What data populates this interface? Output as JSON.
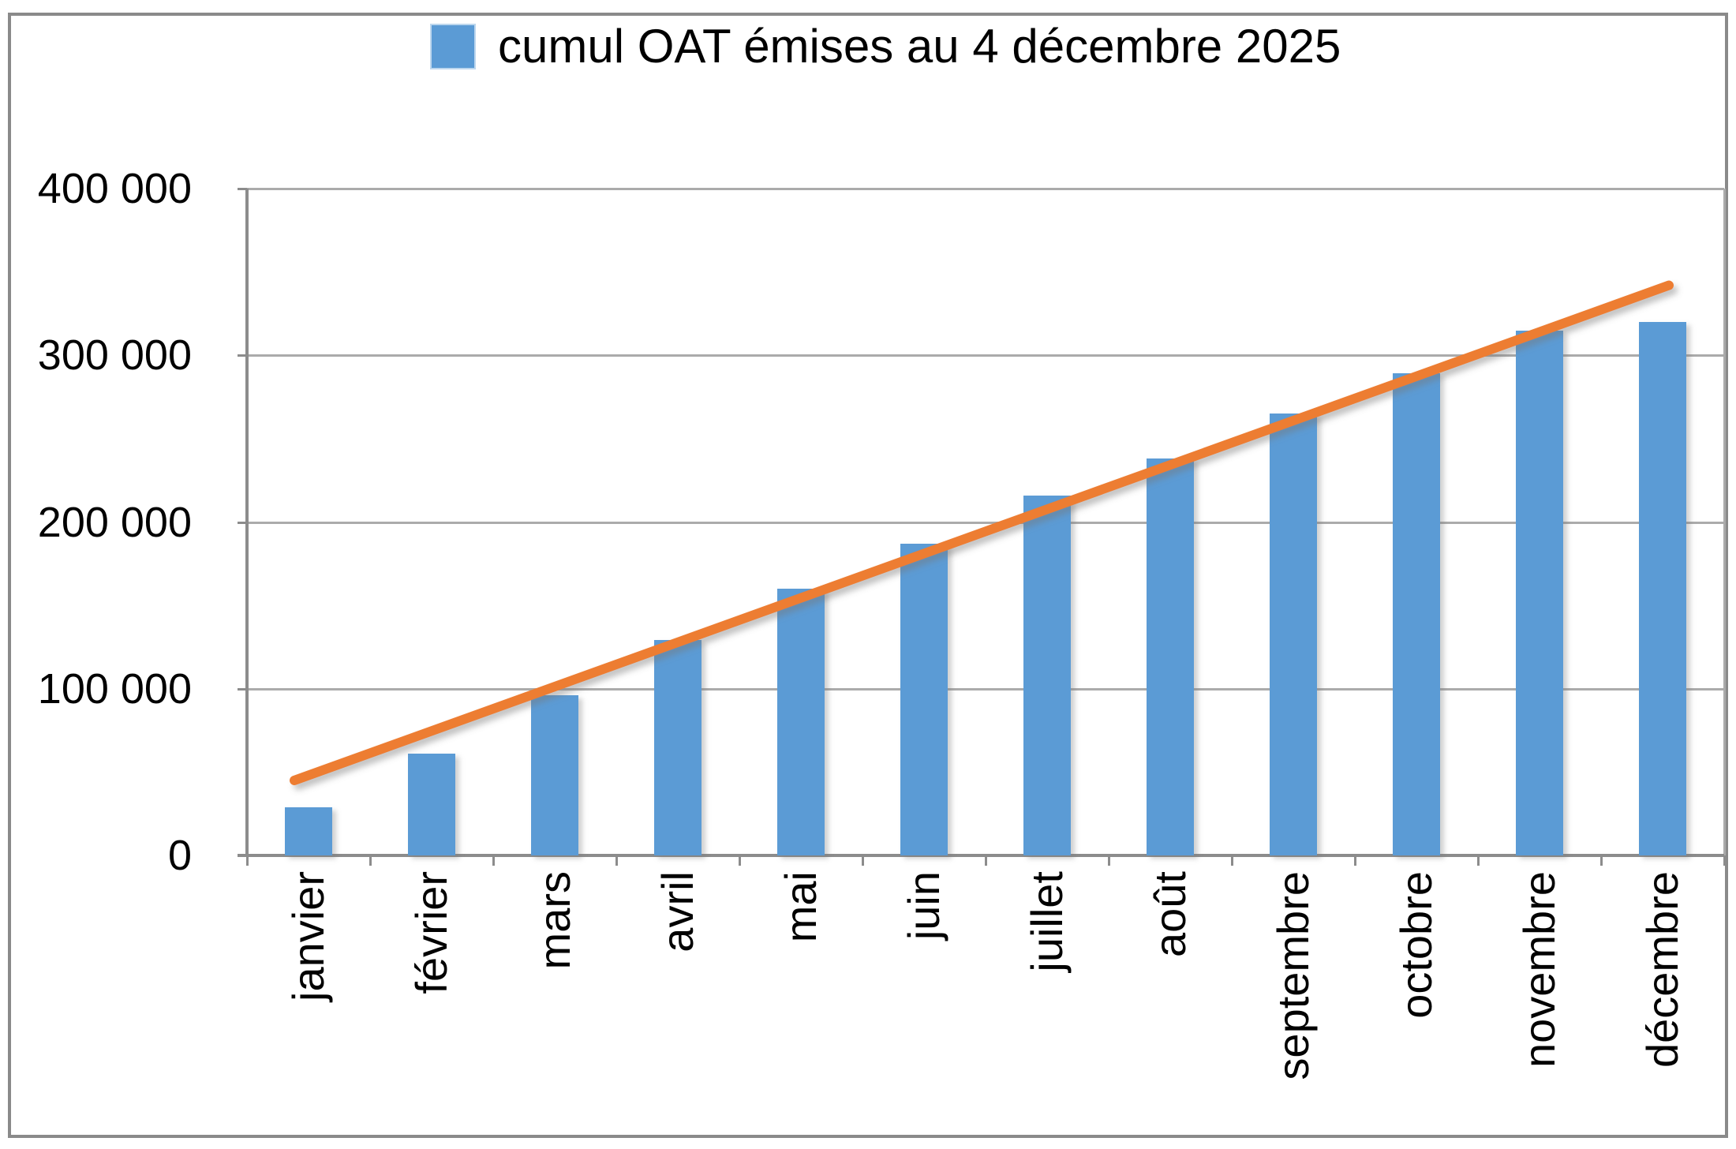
{
  "legend": {
    "label": "cumul OAT émises au 4 décembre 2025",
    "marker_color": "#5B9BD5"
  },
  "colors": {
    "bar": "#5B9BD5",
    "trend": "#ED7D31",
    "gridline": "#ABABAB",
    "axis": "#8C8C8C",
    "text": "#000000",
    "frame_border": "#8A8A8A"
  },
  "chart_data": {
    "type": "bar",
    "title": "cumul OAT émises au 4 décembre 2025",
    "categories": [
      "janvier",
      "février",
      "mars",
      "avril",
      "mai",
      "juin",
      "juillet",
      "août",
      "septembre",
      "octobre",
      "novembre",
      "décembre"
    ],
    "series": [
      {
        "name": "cumul OAT émises au 4 décembre 2025",
        "type": "bar",
        "color": "#5B9BD5",
        "values": [
          29000,
          61000,
          96000,
          129000,
          160000,
          187000,
          216000,
          238000,
          265000,
          289000,
          315000,
          320000
        ]
      }
    ],
    "trendline": {
      "type": "linear",
      "color": "#ED7D31",
      "start_value": 45000,
      "end_value": 342000
    },
    "xlabel": "",
    "ylabel": "",
    "ylim": [
      0,
      400000
    ],
    "y_ticks": [
      {
        "value": 0,
        "label": "0"
      },
      {
        "value": 100000,
        "label": "100 000"
      },
      {
        "value": 200000,
        "label": "200 000"
      },
      {
        "value": 300000,
        "label": "300 000"
      },
      {
        "value": 400000,
        "label": "400 000"
      }
    ],
    "grid": true,
    "legend_position": "top"
  }
}
